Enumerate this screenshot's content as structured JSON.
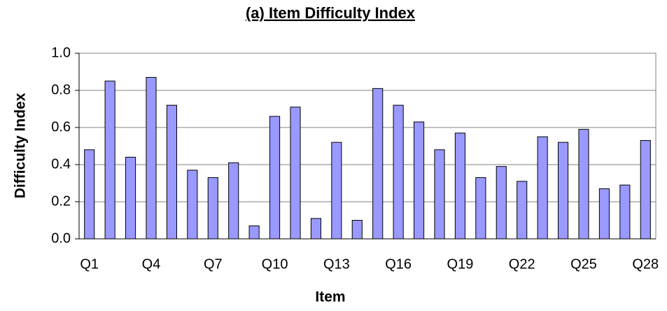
{
  "chart_data": {
    "type": "bar",
    "title": "(a) Item Difficulty Index",
    "x_label": "Item",
    "y_label": "Difficulty Index",
    "categories": [
      "Q1",
      null,
      null,
      "Q4",
      null,
      null,
      "Q7",
      null,
      null,
      "Q10",
      null,
      null,
      "Q13",
      null,
      null,
      "Q16",
      null,
      null,
      "Q19",
      null,
      null,
      "Q22",
      null,
      null,
      "Q25",
      null,
      null,
      "Q28"
    ],
    "values": [
      0.48,
      0.85,
      0.44,
      0.87,
      0.72,
      0.37,
      0.33,
      0.41,
      0.07,
      0.66,
      0.71,
      0.11,
      0.52,
      0.1,
      0.81,
      0.72,
      0.63,
      0.48,
      0.57,
      0.33,
      0.39,
      0.31,
      0.55,
      0.52,
      0.59,
      0.27,
      0.29,
      0.53
    ],
    "color": "#9999ff",
    "ylim": [
      0,
      1
    ],
    "yticks": [
      {
        "value": 0,
        "label": "0.0"
      },
      0.2,
      0.4,
      0.6,
      0.8,
      {
        "value": 1,
        "label": "1.0"
      }
    ],
    "grid": true
  }
}
